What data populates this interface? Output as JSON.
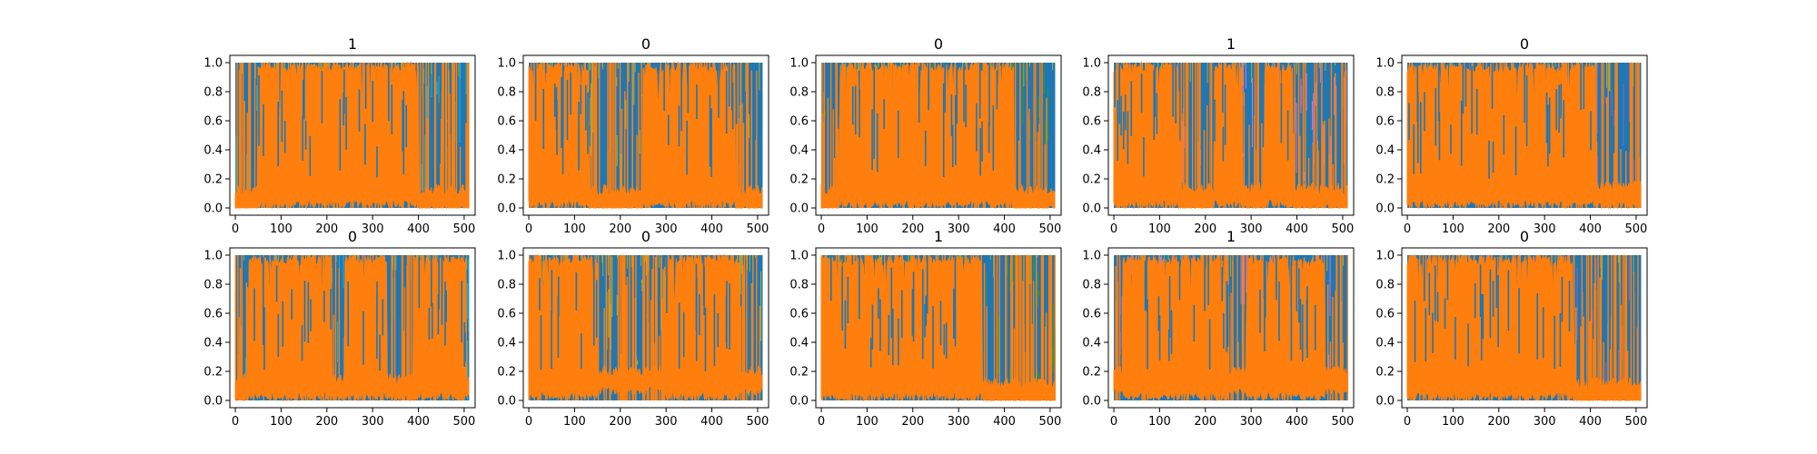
{
  "chart_data": {
    "type": "line",
    "layout": {
      "rows": 2,
      "cols": 5
    },
    "xlim": [
      -12,
      524
    ],
    "ylim": [
      -0.05,
      1.05
    ],
    "x_ticks": [
      0,
      100,
      200,
      300,
      400,
      500
    ],
    "y_ticks": [
      0.0,
      0.2,
      0.4,
      0.6,
      0.8,
      1.0
    ],
    "x_tick_labels": [
      "0",
      "100",
      "200",
      "300",
      "400",
      "500"
    ],
    "y_tick_labels": [
      "0.0",
      "0.2",
      "0.4",
      "0.6",
      "0.8",
      "1.0"
    ],
    "series_colors": [
      "#1f77b4",
      "#ff7f0e",
      "#17becf",
      "#bcbd22",
      "#2ca02c",
      "#e377c2",
      "#9467bd"
    ],
    "panels": [
      {
        "title": "1",
        "high_segments": [
          [
            50,
            400
          ]
        ],
        "low_level": 0.12
      },
      {
        "title": "0",
        "high_segments": [
          [
            0,
            130
          ],
          [
            250,
            450
          ]
        ],
        "low_level": 0.12
      },
      {
        "title": "0",
        "high_segments": [
          [
            40,
            420
          ]
        ],
        "low_level": 0.12
      },
      {
        "title": "1",
        "high_segments": [
          [
            0,
            140
          ],
          [
            220,
            280
          ],
          [
            330,
            390
          ]
        ],
        "low_level": 0.13
      },
      {
        "title": "0",
        "high_segments": [
          [
            0,
            410
          ]
        ],
        "low_level": 0.15
      },
      {
        "title": "0",
        "high_segments": [
          [
            30,
            210
          ],
          [
            240,
            330
          ],
          [
            390,
            505
          ]
        ],
        "low_level": 0.15
      },
      {
        "title": "0",
        "high_segments": [
          [
            0,
            150
          ],
          [
            300,
            460
          ]
        ],
        "low_level": 0.2
      },
      {
        "title": "1",
        "high_segments": [
          [
            0,
            350
          ]
        ],
        "low_level": 0.12
      },
      {
        "title": "1",
        "high_segments": [
          [
            20,
            250
          ],
          [
            290,
            460
          ]
        ],
        "low_level": 0.2
      },
      {
        "title": "0",
        "high_segments": [
          [
            0,
            360
          ]
        ],
        "low_level": 0.12
      }
    ]
  }
}
